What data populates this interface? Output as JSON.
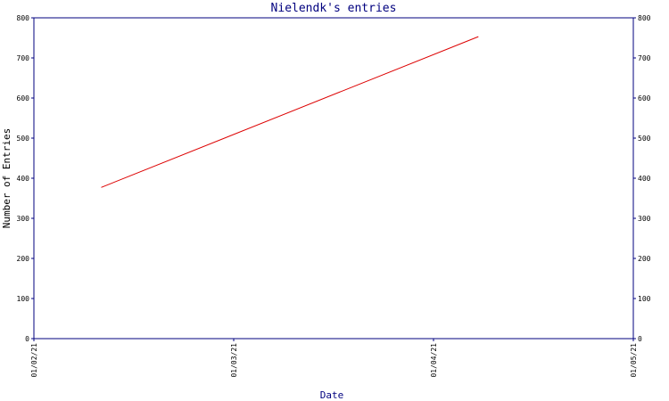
{
  "chart_data": {
    "type": "line",
    "title": "Nielendk's entries",
    "xlabel": "Date",
    "ylabel": "Number of Entries",
    "x_ticks": [
      "01/02/21",
      "01/03/21",
      "01/04/21",
      "01/05/21"
    ],
    "xlim": [
      "2021-02-01",
      "2021-05-01"
    ],
    "ylim": [
      0,
      800
    ],
    "y_ticks": [
      "0",
      "100",
      "200",
      "300",
      "400",
      "500",
      "600",
      "700",
      "800"
    ],
    "right_axis_ticks": [
      "0",
      "100",
      "200",
      "300",
      "400",
      "500",
      "600",
      "700",
      "800"
    ],
    "grid": false,
    "series": [
      {
        "color": "#dd0000",
        "points": [
          {
            "x": "2021-02-11",
            "y": 377
          },
          {
            "x": "2021-04-08",
            "y": 753
          }
        ]
      }
    ]
  },
  "colors": {
    "axis": "#00007f",
    "title": "#00007f",
    "line": "#dd0000"
  }
}
